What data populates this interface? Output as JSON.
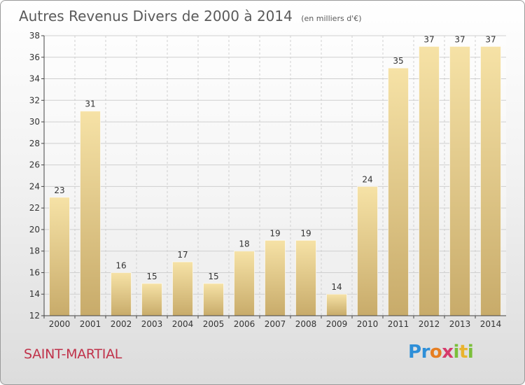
{
  "page": {
    "commune": "SAINT-MARTIAL",
    "logo_letters": [
      "P",
      "r",
      "o",
      "x",
      "i",
      "t",
      "i"
    ],
    "logo_colors": [
      "#2e8fd8",
      "#2e8fd8",
      "#e67e22",
      "#d63a6b",
      "#7bbf3a",
      "#e9b32e",
      "#7bbf3a"
    ]
  },
  "chart_data": {
    "type": "bar",
    "title": "Autres Revenus Divers de 2000 à 2014",
    "subtitle": "(en milliers d'€)",
    "categories": [
      "2000",
      "2001",
      "2002",
      "2003",
      "2004",
      "2005",
      "2006",
      "2007",
      "2008",
      "2009",
      "2010",
      "2011",
      "2012",
      "2013",
      "2014"
    ],
    "values": [
      23,
      31,
      16,
      15,
      17,
      15,
      18,
      19,
      19,
      14,
      24,
      35,
      37,
      37,
      37
    ],
    "ylim": [
      12,
      38
    ],
    "yticks": [
      12,
      14,
      16,
      18,
      20,
      22,
      24,
      26,
      28,
      30,
      32,
      34,
      36,
      38
    ],
    "grid": true,
    "legend": "none",
    "colors": {
      "bar_light": "#f6e2a6",
      "bar_dark": "#c8ab6a",
      "grid": "#cfcfcf",
      "axis": "#444444"
    }
  }
}
